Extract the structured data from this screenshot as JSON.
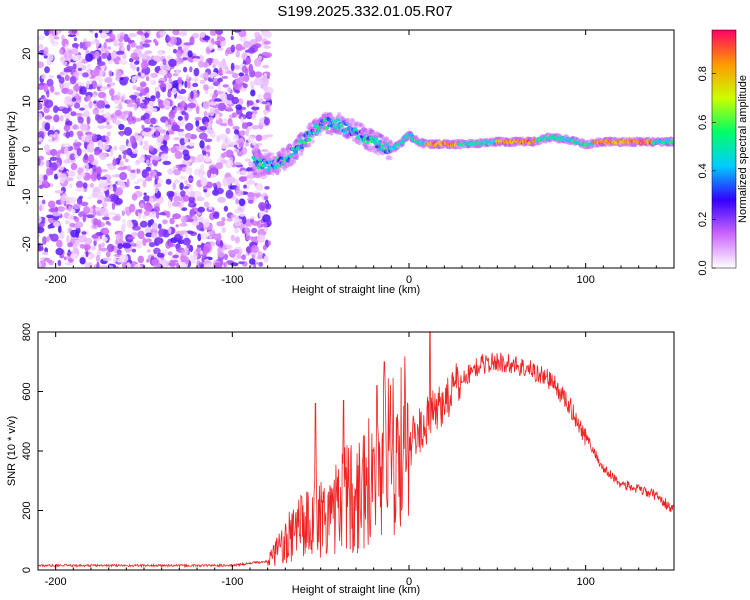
{
  "title": "S199.2025.332.01.05.R07",
  "chart_data": [
    {
      "type": "heatmap",
      "xlabel": "Height of straight line (km)",
      "ylabel": "Frequency (Hz)",
      "xlim": [
        -210,
        150
      ],
      "ylim": [
        -25,
        25
      ],
      "xticks": [
        -200,
        -100,
        0,
        100
      ],
      "yticks": [
        -20,
        -10,
        0,
        10,
        20
      ],
      "ridge": [
        {
          "x": -88,
          "f": -2.5
        },
        {
          "x": -80,
          "f": -3.5
        },
        {
          "x": -75,
          "f": -3.0
        },
        {
          "x": -70,
          "f": -2.0
        },
        {
          "x": -65,
          "f": -0.5
        },
        {
          "x": -60,
          "f": 1.5
        },
        {
          "x": -55,
          "f": 3.5
        },
        {
          "x": -50,
          "f": 5.0
        },
        {
          "x": -45,
          "f": 5.5
        },
        {
          "x": -40,
          "f": 5.2
        },
        {
          "x": -35,
          "f": 4.5
        },
        {
          "x": -30,
          "f": 3.5
        },
        {
          "x": -25,
          "f": 2.5
        },
        {
          "x": -20,
          "f": 1.5
        },
        {
          "x": -15,
          "f": 0.5
        },
        {
          "x": -10,
          "f": 0.0
        },
        {
          "x": -5,
          "f": 1.0
        },
        {
          "x": 0,
          "f": 3.0
        },
        {
          "x": 5,
          "f": 1.5
        },
        {
          "x": 10,
          "f": 1.0
        },
        {
          "x": 30,
          "f": 1.0
        },
        {
          "x": 50,
          "f": 1.5
        },
        {
          "x": 70,
          "f": 1.5
        },
        {
          "x": 80,
          "f": 2.5
        },
        {
          "x": 90,
          "f": 2.0
        },
        {
          "x": 100,
          "f": 1.0
        },
        {
          "x": 110,
          "f": 1.5
        },
        {
          "x": 150,
          "f": 1.5
        }
      ],
      "peak_segments": [
        [
          10,
          28
        ],
        [
          50,
          72
        ],
        [
          105,
          138
        ]
      ],
      "noise_region": {
        "x_from": -210,
        "x_to": -83
      }
    },
    {
      "type": "line",
      "xlabel": "Height of straight line (km)",
      "ylabel": "SNR (10 * v/v)",
      "xlim": [
        -210,
        150
      ],
      "ylim": [
        0,
        800
      ],
      "xticks": [
        -200,
        -100,
        0,
        100
      ],
      "yticks": [
        0,
        200,
        400,
        600,
        800
      ],
      "series_color": "#ee2222",
      "envelope": [
        {
          "x": -210,
          "y": 15
        },
        {
          "x": -150,
          "y": 15
        },
        {
          "x": -100,
          "y": 15
        },
        {
          "x": -80,
          "y": 30
        },
        {
          "x": -70,
          "y": 90
        },
        {
          "x": -60,
          "y": 150
        },
        {
          "x": -50,
          "y": 180
        },
        {
          "x": -40,
          "y": 220
        },
        {
          "x": -30,
          "y": 260
        },
        {
          "x": -20,
          "y": 320
        },
        {
          "x": -10,
          "y": 360
        },
        {
          "x": 0,
          "y": 420
        },
        {
          "x": 10,
          "y": 500
        },
        {
          "x": 20,
          "y": 570
        },
        {
          "x": 30,
          "y": 640
        },
        {
          "x": 40,
          "y": 690
        },
        {
          "x": 50,
          "y": 700
        },
        {
          "x": 60,
          "y": 690
        },
        {
          "x": 70,
          "y": 670
        },
        {
          "x": 80,
          "y": 640
        },
        {
          "x": 90,
          "y": 560
        },
        {
          "x": 100,
          "y": 450
        },
        {
          "x": 110,
          "y": 340
        },
        {
          "x": 120,
          "y": 290
        },
        {
          "x": 130,
          "y": 270
        },
        {
          "x": 140,
          "y": 250
        },
        {
          "x": 150,
          "y": 200
        }
      ],
      "spikes": [
        {
          "x": -53,
          "y": 560
        },
        {
          "x": -37,
          "y": 570
        },
        {
          "x": -18,
          "y": 620
        },
        {
          "x": -14,
          "y": 700
        },
        {
          "x": 12,
          "y": 800
        }
      ]
    }
  ],
  "colorbar": {
    "label": "Normalized spectral amplitude",
    "ticks": [
      "0.0",
      "0.2",
      "0.4",
      "0.6",
      "0.8"
    ],
    "tick_values": [
      0.0,
      0.2,
      0.4,
      0.6,
      0.8
    ],
    "max": 0.98,
    "stops": [
      "#ffffff",
      "#cc66ff",
      "#3300ff",
      "#00ccff",
      "#00ff66",
      "#ccff00",
      "#ff9900",
      "#ff0066"
    ]
  }
}
